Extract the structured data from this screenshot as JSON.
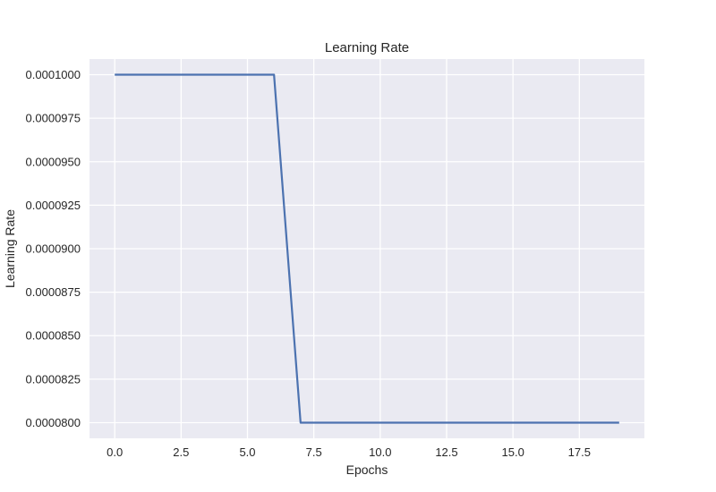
{
  "chart_data": {
    "type": "line",
    "title": "Learning Rate",
    "xlabel": "Epochs",
    "ylabel": "Learning Rate",
    "xlim": [
      -0.95,
      19.95
    ],
    "ylim": [
      7.91e-05,
      0.0001009
    ],
    "xticks": [
      0,
      2.5,
      5,
      7.5,
      10,
      12.5,
      15,
      17.5
    ],
    "xtick_labels": [
      "0.0",
      "2.5",
      "5.0",
      "7.5",
      "10.0",
      "12.5",
      "15.0",
      "17.5"
    ],
    "yticks": [
      8e-05,
      8.25e-05,
      8.5e-05,
      8.75e-05,
      9e-05,
      9.25e-05,
      9.5e-05,
      9.75e-05,
      0.0001
    ],
    "ytick_labels": [
      "0.0000800",
      "0.0000825",
      "0.0000850",
      "0.0000875",
      "0.0000900",
      "0.0000925",
      "0.0000950",
      "0.0000975",
      "0.0001000"
    ],
    "grid": true,
    "colors": {
      "background": "#eaeaf2",
      "grid": "#ffffff",
      "line": "#4c72b0"
    },
    "series": [
      {
        "x": [
          0,
          1,
          2,
          3,
          4,
          5,
          6,
          7,
          8,
          9,
          10,
          11,
          12,
          13,
          14,
          15,
          16,
          17,
          18,
          19
        ],
        "y": [
          0.0001,
          0.0001,
          0.0001,
          0.0001,
          0.0001,
          0.0001,
          0.0001,
          8e-05,
          8e-05,
          8e-05,
          8e-05,
          8e-05,
          8e-05,
          8e-05,
          8e-05,
          8e-05,
          8e-05,
          8e-05,
          8e-05,
          8e-05
        ]
      }
    ]
  }
}
